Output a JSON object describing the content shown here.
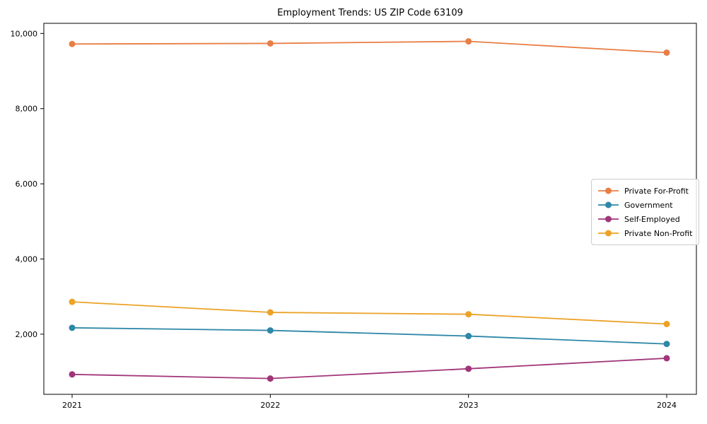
{
  "chart_data": {
    "type": "line",
    "title": "Employment Trends: US ZIP Code 63109",
    "categories": [
      "2021",
      "2022",
      "2023",
      "2024"
    ],
    "series": [
      {
        "name": "Private For-Profit",
        "color": "#e87e45",
        "values": [
          9720,
          9735,
          9790,
          9490
        ]
      },
      {
        "name": "Government",
        "color": "#2e87a8",
        "values": [
          2170,
          2100,
          1950,
          1740
        ]
      },
      {
        "name": "Self-Employed",
        "color": "#a13579",
        "values": [
          930,
          820,
          1080,
          1360
        ]
      },
      {
        "name": "Private Non-Profit",
        "color": "#eba226",
        "values": [
          2860,
          2580,
          2530,
          2270
        ]
      }
    ],
    "xlabel": "",
    "ylabel": "",
    "ylim": [
      400,
      10270
    ],
    "yticks": [
      2000,
      4000,
      6000,
      8000,
      10000
    ],
    "grid": false,
    "legend_position": "center-right",
    "axis_color": "#000000"
  }
}
